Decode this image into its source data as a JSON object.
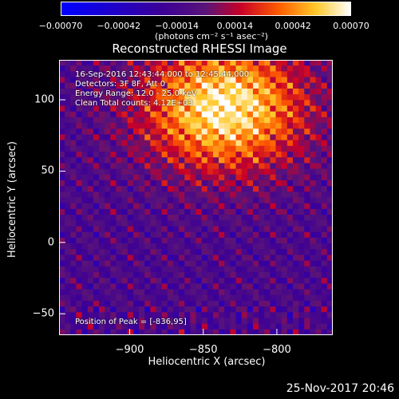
{
  "chart_data": {
    "type": "heatmap",
    "title": "Reconstructed RHESSI Image",
    "xlabel": "Heliocentric X (arcsec)",
    "ylabel": "Heliocentric Y (arcsec)",
    "xlim": [
      -948,
      -762
    ],
    "ylim": [
      -65,
      128
    ],
    "x_ticks": [
      "−900",
      "−850",
      "−800"
    ],
    "x_tick_values": [
      -900,
      -850,
      -800
    ],
    "y_ticks": [
      "−50",
      "0",
      "50",
      "100"
    ],
    "y_tick_values": [
      -50,
      0,
      50,
      100
    ],
    "colorbar": {
      "ticks": [
        "−0.00070",
        "−0.00042",
        "−0.00014",
        "0.00014",
        "0.00042",
        "0.00070"
      ],
      "tick_values": [
        -0.0007,
        -0.00042,
        -0.00014,
        0.00014,
        0.00042,
        0.0007
      ],
      "range": [
        -0.0007,
        0.0007
      ],
      "units": "(photons cm⁻² s⁻¹ asec⁻²)"
    },
    "annotations": {
      "time_range": "16-Sep-2016 12:43:44.000 to 12:45:44.000",
      "detectors": "Detectors: 3F 8F, Att 0",
      "energy": "Energy Range: 12.0 - 25.0 keV",
      "method": "Clean    Total counts: 4.12E+03",
      "peak": "Position of Peak = [-836,95]"
    },
    "peak_position": [
      -836,
      95
    ],
    "grid": false
  },
  "footer": {
    "timestamp": "25-Nov-2017 20:46"
  }
}
